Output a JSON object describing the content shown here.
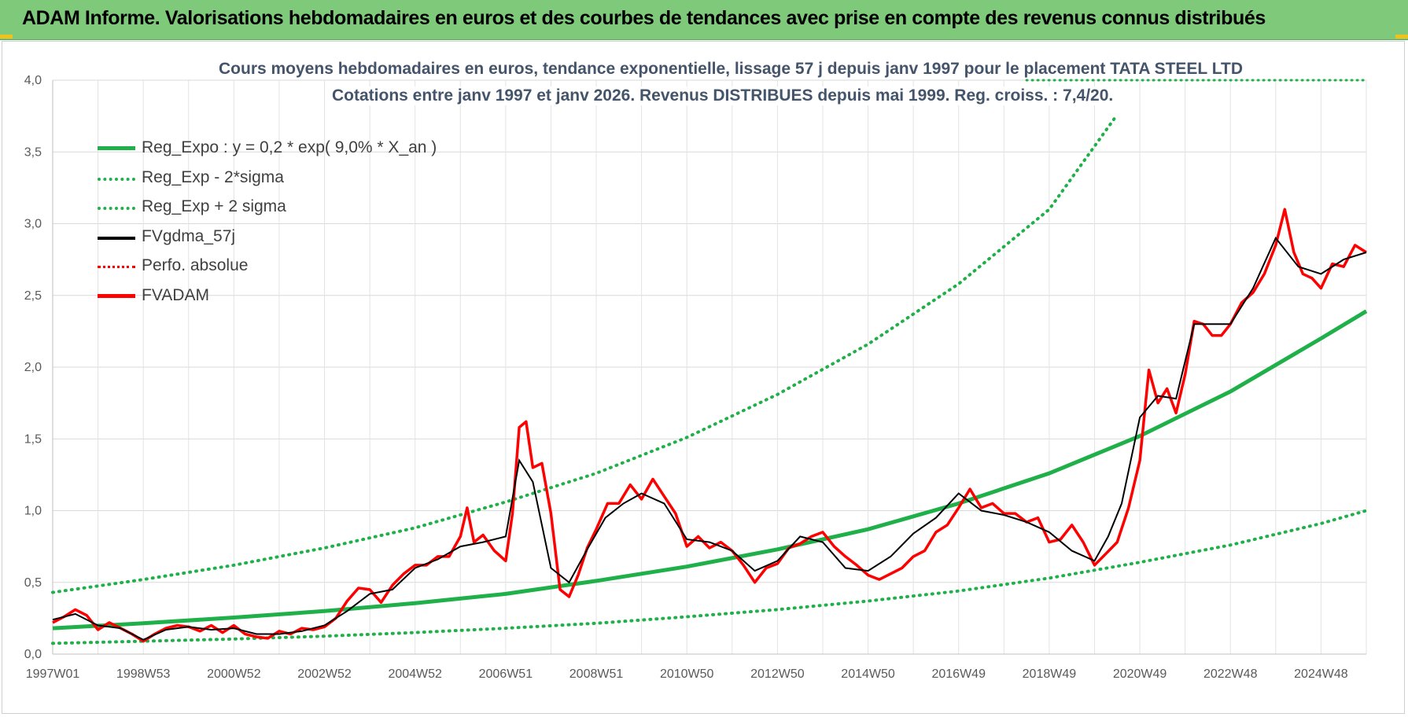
{
  "banner": {
    "title": "ADAM Informe. Valorisations hebdomadaires en euros et des courbes de tendances avec prise en compte des revenus connus distribués"
  },
  "colors": {
    "banner_bg": "#7ec97a",
    "reg_expo": "#1fb04a",
    "fvgdma": "#000000",
    "fvadam": "#ff0000",
    "title_text": "#44546a"
  },
  "chart_data": {
    "type": "line",
    "title_line1": "Cours moyens hebdomadaires en euros, tendance exponentielle, lissage 57 j depuis janv 1997  pour le placement TATA STEEL LTD",
    "title_line2": "Cotations entre janv 1997 et janv 2026. Revenus DISTRIBUES depuis mai 1999. Reg. croiss. : 7,4/20.",
    "ylim": [
      0,
      4
    ],
    "yticks": [
      "0,0",
      "0,5",
      "1,0",
      "1,5",
      "2,0",
      "2,5",
      "3,0",
      "3,5",
      "4,0"
    ],
    "xlim": [
      1997.0,
      2026.0
    ],
    "xticks": [
      {
        "label": "1997W01",
        "x": 1997.0
      },
      {
        "label": "1998W53",
        "x": 1999.0
      },
      {
        "label": "2000W52",
        "x": 2001.0
      },
      {
        "label": "2002W52",
        "x": 2003.0
      },
      {
        "label": "2004W52",
        "x": 2005.0
      },
      {
        "label": "2006W51",
        "x": 2007.0
      },
      {
        "label": "2008W51",
        "x": 2009.0
      },
      {
        "label": "2010W50",
        "x": 2011.0
      },
      {
        "label": "2012W50",
        "x": 2013.0
      },
      {
        "label": "2014W50",
        "x": 2015.0
      },
      {
        "label": "2016W49",
        "x": 2017.0
      },
      {
        "label": "2018W49",
        "x": 2019.0
      },
      {
        "label": "2020W49",
        "x": 2021.0
      },
      {
        "label": "2022W48",
        "x": 2023.0
      },
      {
        "label": "2024W48",
        "x": 2025.0
      }
    ],
    "grid": true,
    "legend_position": "top-left",
    "series": [
      {
        "name": "Reg_Expo : y = 0,2 * exp( 9,0% *  X_an )",
        "style": "solid-green",
        "x": [
          1997.0,
          1999.0,
          2001.0,
          2003.0,
          2005.0,
          2007.0,
          2009.0,
          2011.0,
          2013.0,
          2015.0,
          2017.0,
          2019.0,
          2021.0,
          2023.0,
          2025.0,
          2026.0
        ],
        "y": [
          0.18,
          0.215,
          0.255,
          0.3,
          0.355,
          0.42,
          0.51,
          0.61,
          0.73,
          0.87,
          1.05,
          1.26,
          1.52,
          1.83,
          2.2,
          2.39
        ]
      },
      {
        "name": "Reg_Exp - 2*sigma",
        "style": "dotted-green",
        "x": [
          1997.0,
          1999.0,
          2001.0,
          2003.0,
          2005.0,
          2007.0,
          2009.0,
          2011.0,
          2013.0,
          2015.0,
          2017.0,
          2019.0,
          2021.0,
          2023.0,
          2025.0,
          2026.0
        ],
        "y": [
          0.075,
          0.09,
          0.105,
          0.125,
          0.15,
          0.18,
          0.215,
          0.26,
          0.31,
          0.37,
          0.44,
          0.53,
          0.64,
          0.76,
          0.91,
          1.0
        ]
      },
      {
        "name": "Reg_Exp + 2 sigma",
        "style": "dotted-green",
        "x": [
          1997.0,
          1999.0,
          2001.0,
          2003.0,
          2005.0,
          2007.0,
          2009.0,
          2011.0,
          2013.0,
          2015.0,
          2017.0,
          2019.0,
          2020.5
        ],
        "y": [
          0.43,
          0.52,
          0.62,
          0.74,
          0.88,
          1.06,
          1.26,
          1.51,
          1.81,
          2.16,
          2.58,
          3.1,
          3.76
        ]
      },
      {
        "name": "FVgdma_57j",
        "style": "solid-black",
        "x": [
          1997.0,
          1997.5,
          1998.0,
          1998.5,
          1999.0,
          1999.5,
          2000.0,
          2000.5,
          2001.0,
          2001.5,
          2002.0,
          2002.5,
          2003.0,
          2003.5,
          2004.0,
          2004.5,
          2005.0,
          2005.5,
          2006.0,
          2006.5,
          2007.0,
          2007.3,
          2007.6,
          2008.0,
          2008.4,
          2008.8,
          2009.2,
          2009.6,
          2010.0,
          2010.5,
          2011.0,
          2011.5,
          2012.0,
          2012.5,
          2013.0,
          2013.5,
          2014.0,
          2014.5,
          2015.0,
          2015.5,
          2016.0,
          2016.5,
          2017.0,
          2017.5,
          2018.0,
          2018.5,
          2019.0,
          2019.5,
          2020.0,
          2020.3,
          2020.6,
          2021.0,
          2021.4,
          2021.8,
          2022.2,
          2022.6,
          2023.0,
          2023.5,
          2024.0,
          2024.5,
          2025.0,
          2025.5,
          2026.0
        ],
        "y": [
          0.24,
          0.28,
          0.2,
          0.18,
          0.1,
          0.17,
          0.19,
          0.17,
          0.18,
          0.14,
          0.14,
          0.16,
          0.2,
          0.3,
          0.42,
          0.45,
          0.6,
          0.66,
          0.75,
          0.78,
          0.82,
          1.35,
          1.2,
          0.6,
          0.5,
          0.73,
          0.95,
          1.05,
          1.12,
          1.05,
          0.8,
          0.78,
          0.72,
          0.58,
          0.65,
          0.82,
          0.78,
          0.6,
          0.58,
          0.68,
          0.84,
          0.95,
          1.12,
          1.0,
          0.97,
          0.92,
          0.85,
          0.72,
          0.65,
          0.82,
          1.05,
          1.65,
          1.8,
          1.78,
          2.3,
          2.3,
          2.3,
          2.55,
          2.9,
          2.7,
          2.65,
          2.75,
          2.8
        ]
      },
      {
        "name": "Perfo. absolue",
        "style": "dotted-red",
        "x": [
          2018.5,
          2026.0
        ],
        "y": [
          4.0,
          4.0
        ]
      },
      {
        "name": "FVADAM",
        "style": "solid-red",
        "x": [
          1997.0,
          1997.25,
          1997.5,
          1997.75,
          1998.0,
          1998.25,
          1998.5,
          1998.75,
          1999.0,
          1999.25,
          1999.5,
          1999.75,
          2000.0,
          2000.25,
          2000.5,
          2000.75,
          2001.0,
          2001.25,
          2001.5,
          2001.75,
          2002.0,
          2002.25,
          2002.5,
          2002.75,
          2003.0,
          2003.25,
          2003.5,
          2003.75,
          2004.0,
          2004.25,
          2004.5,
          2004.75,
          2005.0,
          2005.25,
          2005.5,
          2005.75,
          2006.0,
          2006.15,
          2006.3,
          2006.5,
          2006.75,
          2007.0,
          2007.15,
          2007.3,
          2007.45,
          2007.6,
          2007.8,
          2008.0,
          2008.2,
          2008.4,
          2008.6,
          2008.8,
          2009.0,
          2009.25,
          2009.5,
          2009.75,
          2010.0,
          2010.25,
          2010.5,
          2010.75,
          2011.0,
          2011.25,
          2011.5,
          2011.75,
          2012.0,
          2012.25,
          2012.5,
          2012.75,
          2013.0,
          2013.25,
          2013.5,
          2013.75,
          2014.0,
          2014.25,
          2014.5,
          2014.75,
          2015.0,
          2015.25,
          2015.5,
          2015.75,
          2016.0,
          2016.25,
          2016.5,
          2016.75,
          2017.0,
          2017.25,
          2017.5,
          2017.75,
          2018.0,
          2018.25,
          2018.5,
          2018.75,
          2019.0,
          2019.25,
          2019.5,
          2019.75,
          2020.0,
          2020.25,
          2020.5,
          2020.75,
          2021.0,
          2021.2,
          2021.4,
          2021.6,
          2021.8,
          2022.0,
          2022.2,
          2022.4,
          2022.6,
          2022.8,
          2023.0,
          2023.25,
          2023.5,
          2023.75,
          2024.0,
          2024.2,
          2024.4,
          2024.6,
          2024.8,
          2025.0,
          2025.25,
          2025.5,
          2025.75,
          2026.0
        ],
        "y": [
          0.22,
          0.26,
          0.31,
          0.27,
          0.17,
          0.22,
          0.18,
          0.14,
          0.09,
          0.14,
          0.18,
          0.2,
          0.19,
          0.16,
          0.2,
          0.15,
          0.2,
          0.14,
          0.12,
          0.11,
          0.16,
          0.14,
          0.18,
          0.17,
          0.19,
          0.25,
          0.37,
          0.46,
          0.45,
          0.36,
          0.48,
          0.56,
          0.62,
          0.62,
          0.68,
          0.68,
          0.82,
          1.02,
          0.78,
          0.83,
          0.72,
          0.65,
          0.98,
          1.58,
          1.62,
          1.3,
          1.33,
          0.98,
          0.45,
          0.4,
          0.55,
          0.74,
          0.87,
          1.05,
          1.05,
          1.18,
          1.08,
          1.22,
          1.1,
          0.98,
          0.75,
          0.82,
          0.74,
          0.78,
          0.72,
          0.62,
          0.5,
          0.6,
          0.63,
          0.74,
          0.77,
          0.82,
          0.85,
          0.75,
          0.68,
          0.62,
          0.55,
          0.52,
          0.56,
          0.6,
          0.68,
          0.72,
          0.85,
          0.9,
          1.02,
          1.15,
          1.02,
          1.05,
          0.98,
          0.98,
          0.92,
          0.95,
          0.78,
          0.8,
          0.9,
          0.78,
          0.62,
          0.7,
          0.78,
          1.02,
          1.35,
          1.98,
          1.75,
          1.85,
          1.68,
          1.95,
          2.32,
          2.3,
          2.22,
          2.22,
          2.3,
          2.45,
          2.52,
          2.65,
          2.85,
          3.1,
          2.8,
          2.65,
          2.62,
          2.55,
          2.72,
          2.7,
          2.85,
          2.8
        ]
      }
    ]
  },
  "legend": [
    {
      "label": "Reg_Expo : y = 0,2 * exp( 9,0% *  X_an )",
      "style": "solid-green"
    },
    {
      "label": "Reg_Exp - 2*sigma",
      "style": "dotted-green"
    },
    {
      "label": "Reg_Exp + 2 sigma",
      "style": "dotted-green"
    },
    {
      "label": "FVgdma_57j",
      "style": "solid-black"
    },
    {
      "label": "Perfo. absolue",
      "style": "dotted-red"
    },
    {
      "label": "FVADAM",
      "style": "solid-red"
    }
  ]
}
